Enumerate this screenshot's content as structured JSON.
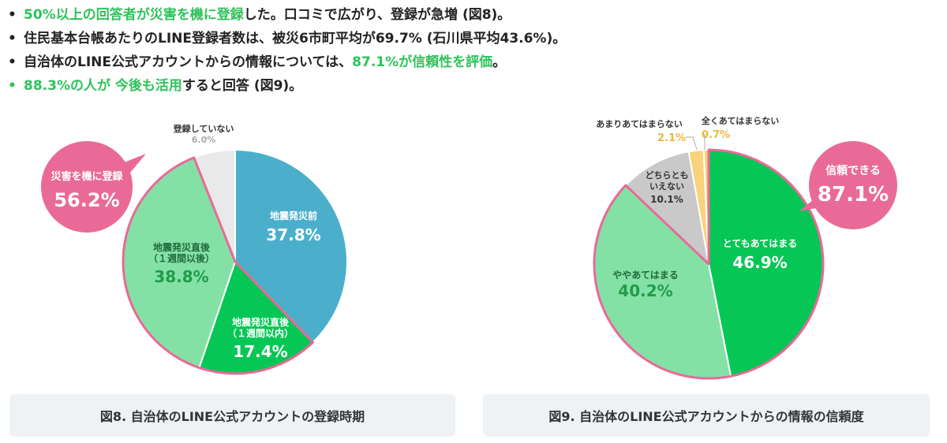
{
  "bullets": [
    {
      "parts": [
        {
          "text": "50%以上の回答者が災害を機に登録",
          "hl": true
        },
        {
          "text": "した。口コミで広がり、登録が急増 (図8)。",
          "hl": false
        }
      ]
    },
    {
      "parts": [
        {
          "text": "住民基本台帳あたりのLINE登録者数は、被災6市町平均が69.7% (石川県平均43.6%)。",
          "hl": false
        }
      ]
    },
    {
      "parts": [
        {
          "text": "自治体のLINE公式アカウントからの情報については、",
          "hl": false
        },
        {
          "text": "87.1%が信頼性を評価",
          "hl": true
        },
        {
          "text": "。",
          "hl": false
        }
      ]
    },
    {
      "parts": [
        {
          "text": "88.3%の人が 今後も活用",
          "hl": true
        },
        {
          "text": "すると回答 (図9)。",
          "hl": false
        }
      ]
    }
  ],
  "colors": {
    "highlight": "#2fc25b",
    "blue": "#4bafcc",
    "green": "#06c755",
    "light_green": "#84e1a6",
    "gray": "#e9e9e9",
    "gray2": "#c9c9c9",
    "yellow": "#f9d27b",
    "pink": "#e96a97"
  },
  "chart_data": [
    {
      "type": "pie",
      "title": "図8. 自治体のLINE公式アカウントの登録時期",
      "series": [
        {
          "label": "地震発災前",
          "value": 37.8
        },
        {
          "label": "地震発災直後（１週間以内）",
          "value": 17.4
        },
        {
          "label": "地震発災直後（１週間以後）",
          "value": 38.8
        },
        {
          "label": "登録していない",
          "value": 6.0
        }
      ],
      "annotation": {
        "text": "災害を機に登録",
        "value": "56.2%"
      }
    },
    {
      "type": "pie",
      "title": "図9. 自治体のLINE公式アカウントからの情報の信頼度",
      "series": [
        {
          "label": "とてもあてはまる",
          "value": 46.9
        },
        {
          "label": "ややあてはまる",
          "value": 40.2
        },
        {
          "label": "どちらともいえない",
          "value": 10.1
        },
        {
          "label": "あまりあてはまらない",
          "value": 2.1
        },
        {
          "label": "全くあてはまらない",
          "value": 0.7
        }
      ],
      "annotation": {
        "text": "信頼できる",
        "value": "87.1%"
      }
    }
  ]
}
